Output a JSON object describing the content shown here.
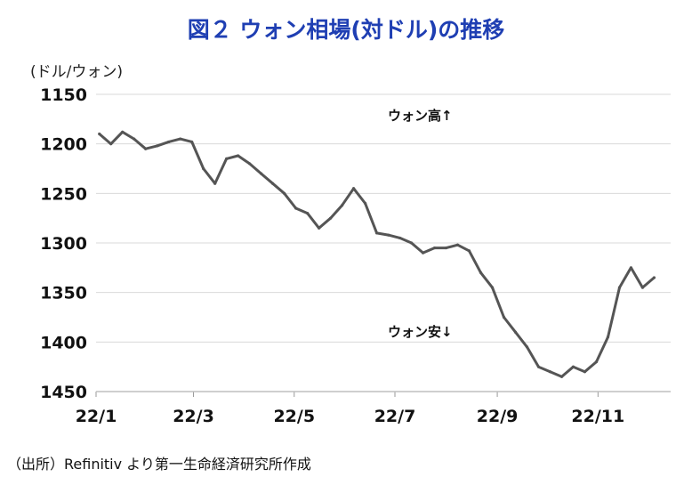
{
  "title": "図２ ウォン相場(対ドル)の推移",
  "unit_label": "(ドル/ウォン)",
  "source": "（出所）Refinitiv より第一生命経済研究所作成",
  "chart_data": {
    "type": "line",
    "title": "図２ ウォン相場(対ドル)の推移",
    "ylabel": "(ドル/ウォン)",
    "xlabel": "",
    "y_inverted": true,
    "ylim": [
      1150,
      1450
    ],
    "yticks": [
      1150,
      1200,
      1250,
      1300,
      1350,
      1400,
      1450
    ],
    "xticks": [
      "22/1",
      "22/3",
      "22/5",
      "22/7",
      "22/9",
      "22/11"
    ],
    "grid": "horizontal",
    "series_color": "#555555",
    "series": [
      {
        "x": [
          "2022-01-03",
          "2022-01-10",
          "2022-01-17",
          "2022-01-24",
          "2022-01-31",
          "2022-02-07",
          "2022-02-14",
          "2022-02-21",
          "2022-02-28",
          "2022-03-07",
          "2022-03-14",
          "2022-03-21",
          "2022-03-28",
          "2022-04-04",
          "2022-04-11",
          "2022-04-18",
          "2022-04-25",
          "2022-05-02",
          "2022-05-09",
          "2022-05-16",
          "2022-05-23",
          "2022-05-30",
          "2022-06-06",
          "2022-06-13",
          "2022-06-20",
          "2022-06-27",
          "2022-07-04",
          "2022-07-11",
          "2022-07-18",
          "2022-07-25",
          "2022-08-01",
          "2022-08-08",
          "2022-08-15",
          "2022-08-22",
          "2022-08-29",
          "2022-09-05",
          "2022-09-12",
          "2022-09-19",
          "2022-09-26",
          "2022-10-03",
          "2022-10-10",
          "2022-10-17",
          "2022-10-24",
          "2022-10-31",
          "2022-11-07",
          "2022-11-14",
          "2022-11-21",
          "2022-11-28",
          "2022-12-05"
        ],
        "values": [
          1190,
          1200,
          1188,
          1195,
          1205,
          1202,
          1198,
          1195,
          1198,
          1225,
          1240,
          1215,
          1212,
          1220,
          1230,
          1240,
          1250,
          1265,
          1270,
          1285,
          1275,
          1262,
          1245,
          1260,
          1290,
          1292,
          1295,
          1300,
          1310,
          1305,
          1305,
          1302,
          1308,
          1330,
          1345,
          1375,
          1390,
          1405,
          1425,
          1430,
          1435,
          1425,
          1430,
          1420,
          1395,
          1345,
          1325,
          1345,
          1335
        ]
      }
    ],
    "annotations": [
      "ウォン高↑",
      "ウォン安↓"
    ]
  }
}
